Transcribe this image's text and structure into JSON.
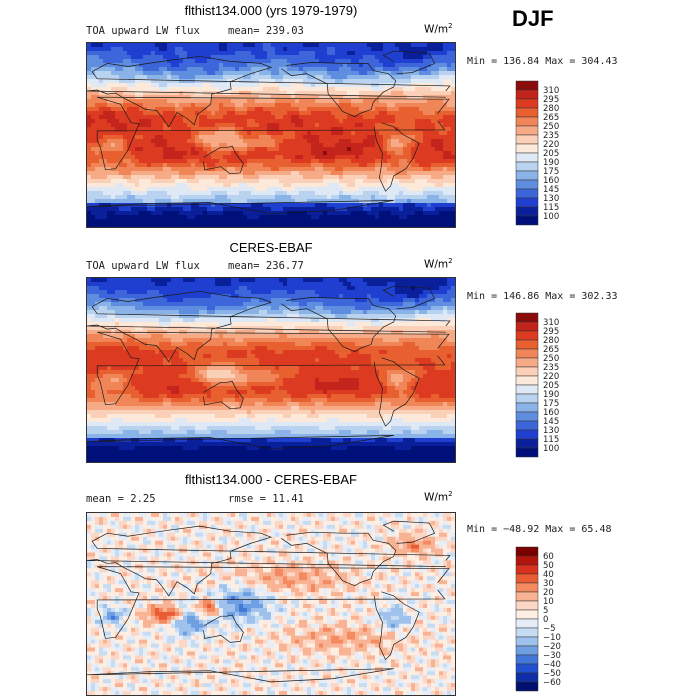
{
  "season": "DJF",
  "panels": [
    {
      "title": "flthist134.000 (yrs 1979-1979)",
      "left_label": "TOA upward LW flux",
      "mean_label": "mean= 239.03",
      "units": "W/m",
      "units_sup": "2",
      "minmax": "Min = 136.84 Max = 304.43",
      "palette": "abs"
    },
    {
      "title": "CERES-EBAF",
      "left_label": "TOA upward LW flux",
      "mean_label": "mean= 236.77",
      "units": "W/m",
      "units_sup": "2",
      "minmax": "Min = 146.86 Max = 302.33",
      "palette": "abs"
    },
    {
      "title": "flthist134.000 - CERES-EBAF",
      "left_label": "mean =    2.25",
      "mean_label": "rmse =   11.41",
      "units": "W/m",
      "units_sup": "2",
      "minmax": "Min = −48.92 Max =   65.48",
      "palette": "diff"
    }
  ],
  "chart_data": [
    {
      "type": "heatmap",
      "title": "flthist134.000 (yrs 1979-1979)",
      "variable": "TOA upward LW flux",
      "units": "W/m2",
      "mean": 239.03,
      "min": 136.84,
      "max": 304.43,
      "contour_levels": [
        100,
        115,
        130,
        145,
        160,
        175,
        190,
        205,
        220,
        235,
        250,
        265,
        280,
        295,
        310
      ],
      "colorbar_labels": [
        "310",
        "295",
        "280",
        "265",
        "250",
        "235",
        "220",
        "205",
        "190",
        "175",
        "160",
        "145",
        "130",
        "115",
        "100"
      ]
    },
    {
      "type": "heatmap",
      "title": "CERES-EBAF",
      "variable": "TOA upward LW flux",
      "units": "W/m2",
      "mean": 236.77,
      "min": 146.86,
      "max": 302.33,
      "contour_levels": [
        100,
        115,
        130,
        145,
        160,
        175,
        190,
        205,
        220,
        235,
        250,
        265,
        280,
        295,
        310
      ],
      "colorbar_labels": [
        "310",
        "295",
        "280",
        "265",
        "250",
        "235",
        "220",
        "205",
        "190",
        "175",
        "160",
        "145",
        "130",
        "115",
        "100"
      ]
    },
    {
      "type": "heatmap",
      "title": "flthist134.000 - CERES-EBAF",
      "units": "W/m2",
      "mean": 2.25,
      "rmse": 11.41,
      "min": -48.92,
      "max": 65.48,
      "contour_levels": [
        -60,
        -50,
        -40,
        -30,
        -20,
        -10,
        -5,
        0,
        5,
        10,
        20,
        30,
        40,
        50,
        60
      ],
      "colorbar_labels": [
        "60",
        "50",
        "40",
        "30",
        "20",
        "10",
        "5",
        "0",
        "−5",
        "−10",
        "−20",
        "−30",
        "−40",
        "−50",
        "−60"
      ]
    }
  ],
  "colors": {
    "abs": [
      "#8a0c0c",
      "#c3241b",
      "#dc3a21",
      "#e8602f",
      "#f08558",
      "#f6ab86",
      "#fbd0b8",
      "#fde9da",
      "#dfe9f6",
      "#b9d2ef",
      "#8ab3e8",
      "#5f8ee0",
      "#3c66d9",
      "#1f3fd0",
      "#0a1f9a",
      "#00107a"
    ],
    "diff": [
      "#7a0000",
      "#b3140e",
      "#d8321e",
      "#ea5c33",
      "#f38a60",
      "#f8b394",
      "#fcd7c5",
      "#fdeee4",
      "#e5eef8",
      "#c6dcf2",
      "#9fc2ec",
      "#6f9fe3",
      "#4377da",
      "#2250cf",
      "#0d2ea8",
      "#00106e"
    ],
    "coast": "#1a1a1a"
  }
}
